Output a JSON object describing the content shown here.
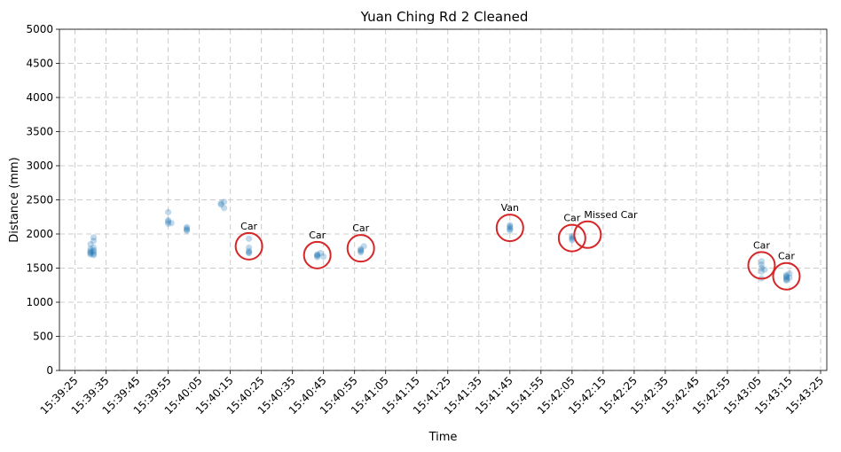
{
  "chart_data": {
    "type": "scatter",
    "title": "Yuan Ching Rd 2 Cleaned",
    "xlabel": "Time",
    "ylabel": "Distance (mm)",
    "xlim": [
      "15:39:20",
      "15:43:27"
    ],
    "ylim": [
      0,
      5000
    ],
    "grid": true,
    "x_ticks": [
      "15:39:25",
      "15:39:35",
      "15:39:45",
      "15:39:55",
      "15:40:05",
      "15:40:15",
      "15:40:25",
      "15:40:35",
      "15:40:45",
      "15:40:55",
      "15:41:05",
      "15:41:15",
      "15:41:25",
      "15:41:35",
      "15:41:45",
      "15:41:55",
      "15:42:05",
      "15:42:15",
      "15:42:25",
      "15:42:35",
      "15:42:45",
      "15:42:55",
      "15:43:05",
      "15:43:15",
      "15:43:25"
    ],
    "y_ticks": [
      0,
      500,
      1000,
      1500,
      2000,
      2500,
      3000,
      3500,
      4000,
      4500,
      5000
    ],
    "colors": {
      "points": "#1f77b4",
      "circles": "#d62728"
    },
    "series": [
      {
        "points": [
          [
            "15:39:30",
            1750
          ],
          [
            "15:39:30",
            1720
          ],
          [
            "15:39:30",
            1700
          ],
          [
            "15:39:30",
            1780
          ],
          [
            "15:39:30",
            1850
          ],
          [
            "15:39:31",
            1740
          ],
          [
            "15:39:31",
            1710
          ],
          [
            "15:39:31",
            1900
          ],
          [
            "15:39:31",
            1950
          ],
          [
            "15:39:31",
            1690
          ],
          [
            "15:39:30",
            1730
          ],
          [
            "15:39:31",
            1760
          ],
          [
            "15:39:31",
            1800
          ],
          [
            "15:39:55",
            2200
          ],
          [
            "15:39:55",
            2150
          ],
          [
            "15:39:55",
            2180
          ],
          [
            "15:39:55",
            2320
          ],
          [
            "15:39:56",
            2160
          ],
          [
            "15:40:01",
            2080
          ],
          [
            "15:40:01",
            2050
          ],
          [
            "15:40:01",
            2100
          ],
          [
            "15:40:01",
            2060
          ],
          [
            "15:40:12",
            2450
          ],
          [
            "15:40:12",
            2430
          ],
          [
            "15:40:13",
            2470
          ],
          [
            "15:40:13",
            2380
          ],
          [
            "15:40:21",
            1730
          ],
          [
            "15:40:21",
            1750
          ],
          [
            "15:40:21",
            1720
          ],
          [
            "15:40:21",
            1930
          ],
          [
            "15:40:21",
            1800
          ],
          [
            "15:40:43",
            1680
          ],
          [
            "15:40:43",
            1660
          ],
          [
            "15:40:43",
            1700
          ],
          [
            "15:40:44",
            1720
          ],
          [
            "15:40:45",
            1670
          ],
          [
            "15:40:43",
            1690
          ],
          [
            "15:40:57",
            1750
          ],
          [
            "15:40:57",
            1780
          ],
          [
            "15:40:57",
            1730
          ],
          [
            "15:40:58",
            1820
          ],
          [
            "15:40:57",
            1760
          ],
          [
            "15:41:45",
            2070
          ],
          [
            "15:41:45",
            2090
          ],
          [
            "15:41:45",
            2050
          ],
          [
            "15:41:45",
            2110
          ],
          [
            "15:41:45",
            2130
          ],
          [
            "15:42:05",
            1950
          ],
          [
            "15:42:05",
            1930
          ],
          [
            "15:42:05",
            1970
          ],
          [
            "15:42:05",
            1910
          ],
          [
            "15:43:06",
            1600
          ],
          [
            "15:43:06",
            1550
          ],
          [
            "15:43:06",
            1500
          ],
          [
            "15:43:06",
            1450
          ],
          [
            "15:43:06",
            1350
          ],
          [
            "15:43:07",
            1480
          ],
          [
            "15:43:14",
            1380
          ],
          [
            "15:43:14",
            1350
          ],
          [
            "15:43:14",
            1330
          ],
          [
            "15:43:14",
            1400
          ],
          [
            "15:43:14",
            1320
          ],
          [
            "15:43:15",
            1360
          ],
          [
            "15:43:15",
            1420
          ],
          [
            "15:43:14",
            1370
          ]
        ]
      }
    ],
    "annotations": [
      {
        "label": "Car",
        "x": "15:40:21",
        "y": 1820
      },
      {
        "label": "Car",
        "x": "15:40:43",
        "y": 1690
      },
      {
        "label": "Car",
        "x": "15:40:57",
        "y": 1790
      },
      {
        "label": "Van",
        "x": "15:41:45",
        "y": 2090
      },
      {
        "label": "Car",
        "x": "15:42:05",
        "y": 1940
      },
      {
        "label": "Missed Car",
        "x": "15:42:10",
        "y": 1990
      },
      {
        "label": "Car",
        "x": "15:43:06",
        "y": 1540
      },
      {
        "label": "Car",
        "x": "15:43:14",
        "y": 1380
      }
    ]
  }
}
